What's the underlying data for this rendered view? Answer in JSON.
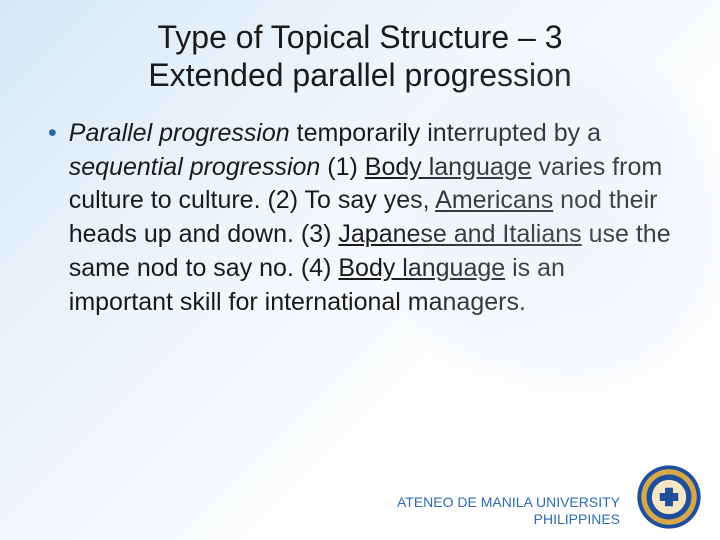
{
  "slide": {
    "title_line1": "Type of Topical Structure – 3",
    "title_line2": "Extended parallel progression",
    "bullet_segments": [
      {
        "text": " ",
        "italic": false,
        "underline": false
      },
      {
        "text": "Parallel progression",
        "italic": true,
        "underline": false
      },
      {
        "text": " temporarily interrupted by a ",
        "italic": false,
        "underline": false
      },
      {
        "text": "sequential progression",
        "italic": true,
        "underline": false
      },
      {
        "text": " (1) ",
        "italic": false,
        "underline": false
      },
      {
        "text": "Body language",
        "italic": false,
        "underline": true
      },
      {
        "text": " varies from culture to culture. (2) To say yes, ",
        "italic": false,
        "underline": false
      },
      {
        "text": "Americans",
        "italic": false,
        "underline": true
      },
      {
        "text": " nod their heads up and down. (3) ",
        "italic": false,
        "underline": false
      },
      {
        "text": "Japanese and Italians",
        "italic": false,
        "underline": true
      },
      {
        "text": " use the same nod to say no. (4) ",
        "italic": false,
        "underline": false
      },
      {
        "text": "Body language",
        "italic": false,
        "underline": true
      },
      {
        "text": " is an important skill for international managers.",
        "italic": false,
        "underline": false
      }
    ],
    "footer_line1": "ATENEO DE MANILA UNIVERSITY",
    "footer_line2": "PHILIPPINES"
  },
  "style": {
    "title_color": "#1a1a1a",
    "body_color": "#1a1a1a",
    "bullet_color": "#2a64ac",
    "footer_color": "#2e6bb0",
    "title_fontsize": 32,
    "body_fontsize": 25,
    "footer_fontsize": 14,
    "seal_outer": "#1f4e9c",
    "seal_gold": "#d6a84a",
    "seal_inner": "#f5e7c5"
  }
}
